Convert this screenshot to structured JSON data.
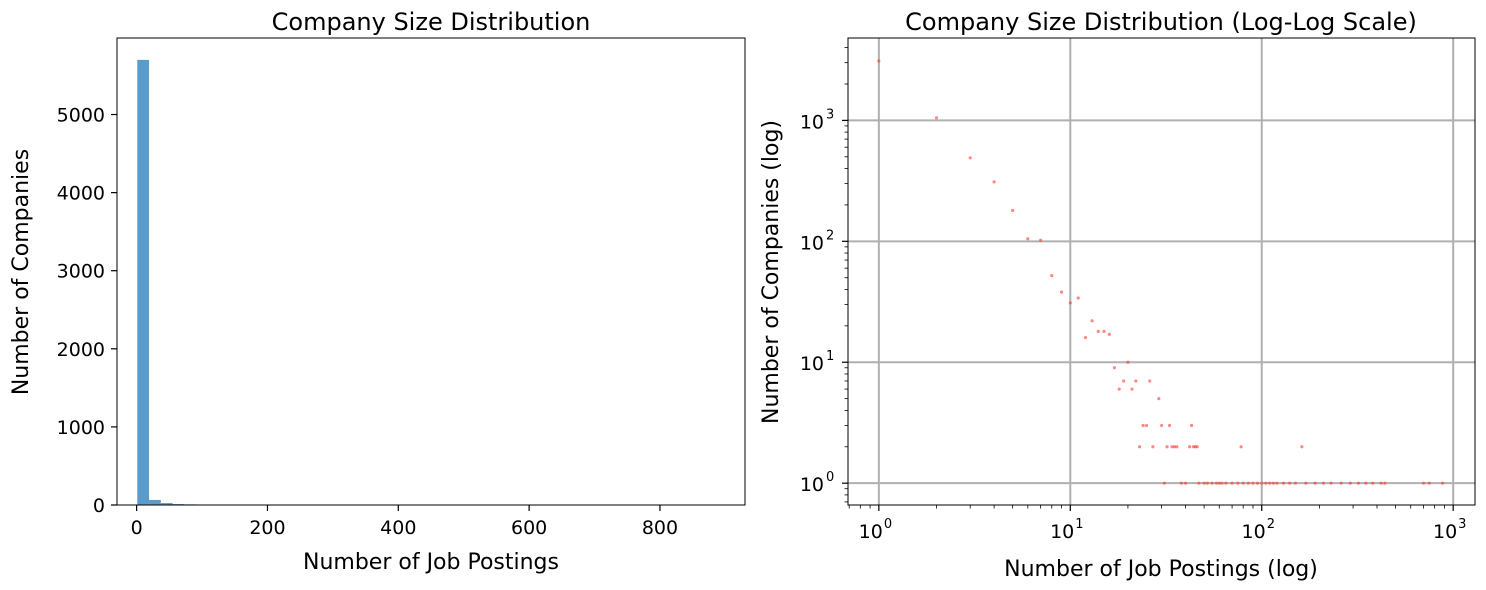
{
  "colors": {
    "hist": "#5b9bc9",
    "scatter": "#ff3b30",
    "grid": "#b0b0b0"
  },
  "chart_data": [
    {
      "type": "bar",
      "title": "Company Size Distribution",
      "xlabel": "Number of Job Postings",
      "ylabel": "Number of Companies",
      "xlim": [
        -30,
        930
      ],
      "ylim": [
        0,
        5980
      ],
      "xticks": [
        0,
        200,
        400,
        600,
        800
      ],
      "yticks": [
        0,
        1000,
        2000,
        3000,
        4000,
        5000
      ],
      "grid": false,
      "bins": [
        {
          "start": 1,
          "end": 19,
          "value": 5700
        },
        {
          "start": 19,
          "end": 37,
          "value": 65
        },
        {
          "start": 37,
          "end": 55,
          "value": 25
        },
        {
          "start": 55,
          "end": 73,
          "value": 12
        },
        {
          "start": 73,
          "end": 91,
          "value": 8
        },
        {
          "start": 91,
          "end": 109,
          "value": 6
        },
        {
          "start": 109,
          "end": 127,
          "value": 3
        },
        {
          "start": 127,
          "end": 145,
          "value": 3
        },
        {
          "start": 145,
          "end": 163,
          "value": 3
        },
        {
          "start": 163,
          "end": 181,
          "value": 2
        },
        {
          "start": 181,
          "end": 199,
          "value": 2
        },
        {
          "start": 199,
          "end": 217,
          "value": 2
        },
        {
          "start": 217,
          "end": 235,
          "value": 1
        },
        {
          "start": 235,
          "end": 253,
          "value": 1
        },
        {
          "start": 253,
          "end": 271,
          "value": 1
        },
        {
          "start": 271,
          "end": 289,
          "value": 1
        },
        {
          "start": 289,
          "end": 307,
          "value": 1
        },
        {
          "start": 325,
          "end": 343,
          "value": 1
        },
        {
          "start": 415,
          "end": 433,
          "value": 1
        },
        {
          "start": 433,
          "end": 451,
          "value": 1
        },
        {
          "start": 703,
          "end": 721,
          "value": 1
        },
        {
          "start": 757,
          "end": 775,
          "value": 1
        },
        {
          "start": 883,
          "end": 901,
          "value": 1
        }
      ]
    },
    {
      "type": "scatter",
      "title": "Company Size Distribution (Log-Log Scale)",
      "xlabel": "Number of Job Postings (log)",
      "ylabel": "Number of Companies (log)",
      "xscale": "log",
      "yscale": "log",
      "xlim": [
        0.69,
        1300
      ],
      "ylim": [
        0.66,
        4800
      ],
      "grid": true,
      "xticks": [
        {
          "base": "10",
          "exp": "0",
          "value": 1
        },
        {
          "base": "10",
          "exp": "1",
          "value": 10
        },
        {
          "base": "10",
          "exp": "2",
          "value": 100
        },
        {
          "base": "10",
          "exp": "3",
          "value": 1000
        }
      ],
      "yticks": [
        {
          "base": "10",
          "exp": "0",
          "value": 1
        },
        {
          "base": "10",
          "exp": "1",
          "value": 10
        },
        {
          "base": "10",
          "exp": "2",
          "value": 100
        },
        {
          "base": "10",
          "exp": "3",
          "value": 1000
        }
      ],
      "points": [
        [
          1,
          3100
        ],
        [
          2,
          1050
        ],
        [
          3,
          490
        ],
        [
          4,
          310
        ],
        [
          5,
          180
        ],
        [
          6,
          105
        ],
        [
          7,
          102
        ],
        [
          8,
          52
        ],
        [
          9,
          38
        ],
        [
          10,
          31
        ],
        [
          11,
          34
        ],
        [
          12,
          16
        ],
        [
          13,
          22
        ],
        [
          14,
          18
        ],
        [
          15,
          18
        ],
        [
          16,
          17
        ],
        [
          17,
          9
        ],
        [
          18,
          6
        ],
        [
          19,
          7
        ],
        [
          20,
          10
        ],
        [
          21,
          6
        ],
        [
          22,
          7
        ],
        [
          23,
          2
        ],
        [
          24,
          3
        ],
        [
          25,
          3
        ],
        [
          26,
          7
        ],
        [
          27,
          2
        ],
        [
          29,
          5
        ],
        [
          30,
          3
        ],
        [
          31,
          1
        ],
        [
          32,
          2
        ],
        [
          33,
          3
        ],
        [
          34,
          2
        ],
        [
          35,
          2
        ],
        [
          36,
          2
        ],
        [
          38,
          1
        ],
        [
          40,
          1
        ],
        [
          42,
          2
        ],
        [
          43,
          3
        ],
        [
          44,
          2
        ],
        [
          45,
          2
        ],
        [
          46,
          2
        ],
        [
          47,
          1
        ],
        [
          50,
          1
        ],
        [
          52,
          1
        ],
        [
          55,
          1
        ],
        [
          58,
          1
        ],
        [
          60,
          1
        ],
        [
          62,
          1
        ],
        [
          65,
          1
        ],
        [
          70,
          1
        ],
        [
          75,
          1
        ],
        [
          78,
          2
        ],
        [
          80,
          1
        ],
        [
          85,
          1
        ],
        [
          90,
          1
        ],
        [
          95,
          1
        ],
        [
          100,
          1
        ],
        [
          105,
          1
        ],
        [
          110,
          1
        ],
        [
          115,
          1
        ],
        [
          120,
          1
        ],
        [
          130,
          1
        ],
        [
          140,
          1
        ],
        [
          150,
          1
        ],
        [
          162,
          2
        ],
        [
          170,
          1
        ],
        [
          190,
          1
        ],
        [
          210,
          1
        ],
        [
          230,
          1
        ],
        [
          260,
          1
        ],
        [
          290,
          1
        ],
        [
          320,
          1
        ],
        [
          350,
          1
        ],
        [
          380,
          1
        ],
        [
          420,
          1
        ],
        [
          440,
          1
        ],
        [
          700,
          1
        ],
        [
          750,
          1
        ],
        [
          880,
          1
        ]
      ]
    }
  ]
}
